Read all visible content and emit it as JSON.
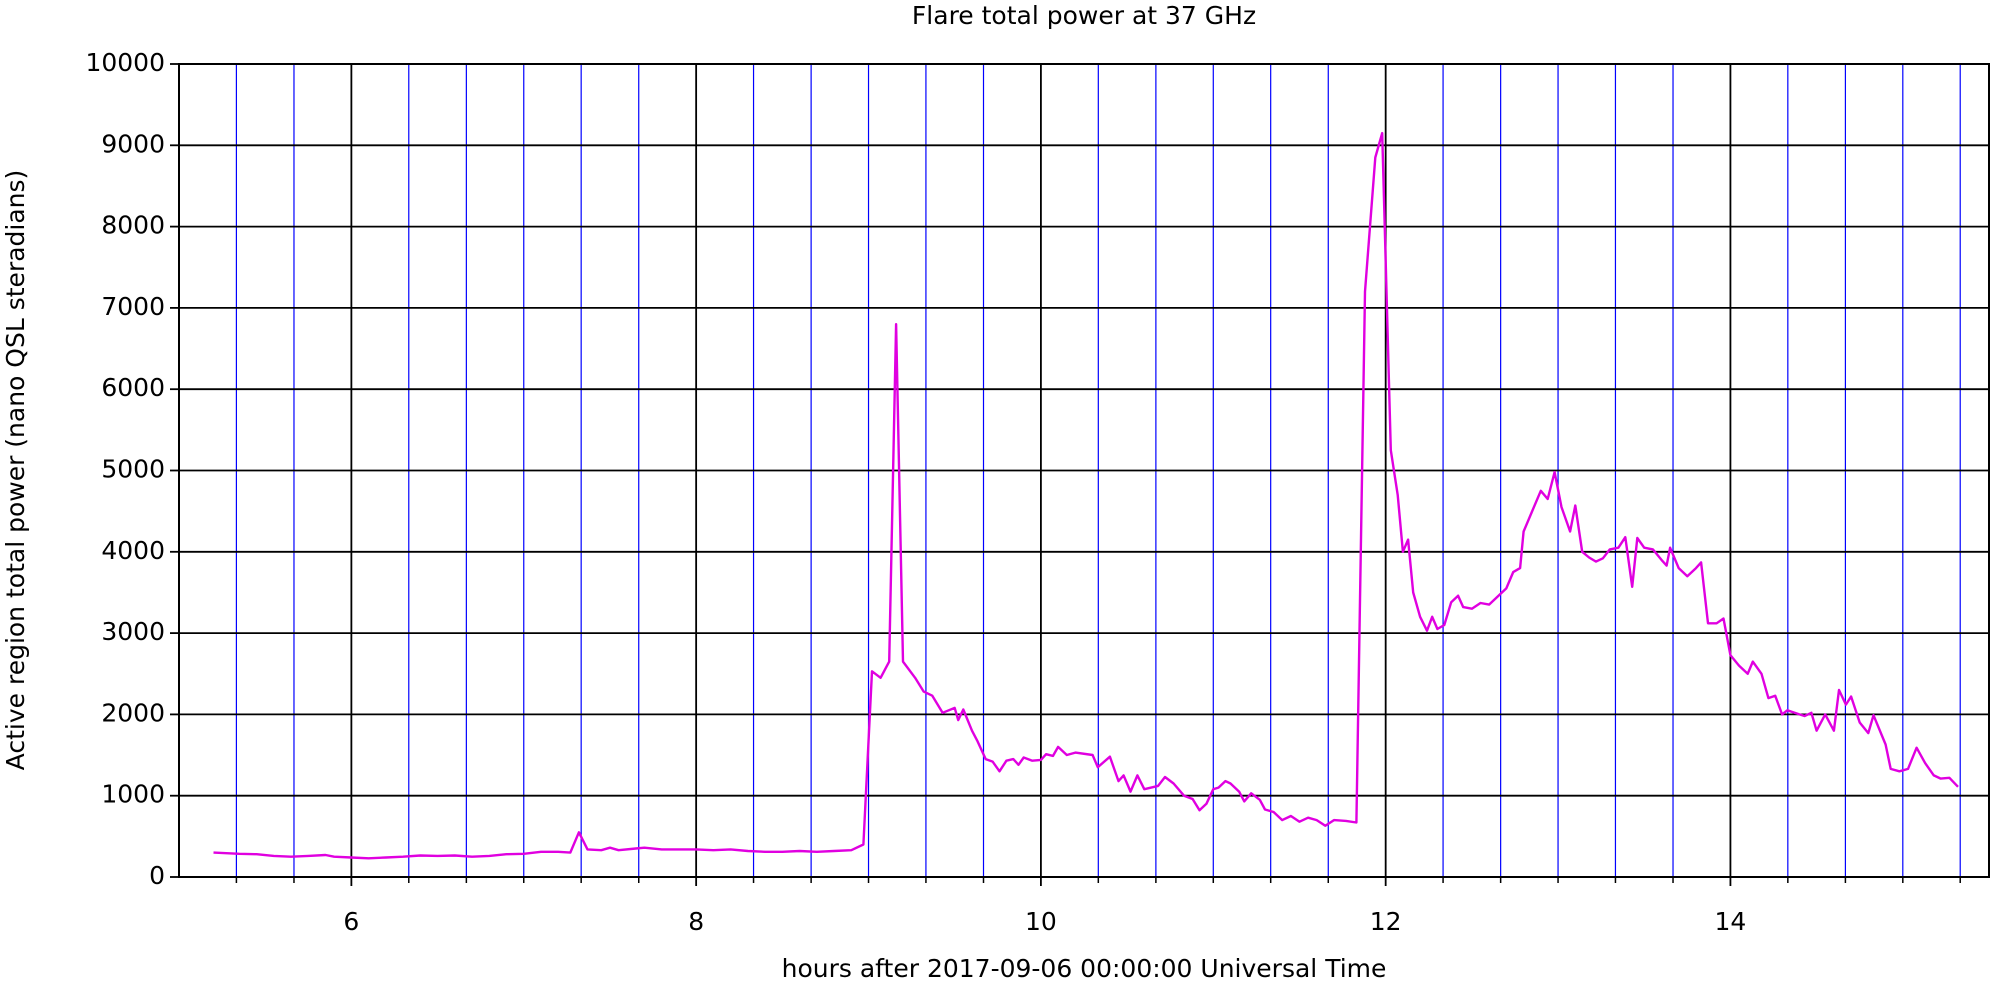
{
  "chart_data": {
    "type": "line",
    "title": "Flare total power at 37 GHz",
    "xlabel": "hours after 2017-09-06 00:00:00 Universal Time",
    "ylabel": "Active region total power (nano QSL steradians)",
    "xlim": [
      5,
      15.5
    ],
    "ylim": [
      0,
      10000
    ],
    "xticks": [
      6,
      8,
      10,
      12,
      14
    ],
    "xminor_ticks": [
      5.333,
      5.667,
      6.333,
      6.667,
      7,
      7.333,
      7.667,
      8.333,
      8.667,
      9,
      9.333,
      9.667,
      10.333,
      10.667,
      11,
      11.333,
      11.667,
      12.333,
      12.667,
      13,
      13.333,
      13.667,
      14.333,
      14.667,
      15,
      15.333
    ],
    "yticks": [
      0,
      1000,
      2000,
      3000,
      4000,
      5000,
      6000,
      7000,
      8000,
      9000,
      10000
    ],
    "grid": true,
    "major_grid_color": "#000000",
    "minor_grid_color": "#0000ff",
    "series": [
      {
        "color": "#e000e0",
        "x": [
          5.2,
          5.35,
          5.45,
          5.55,
          5.65,
          5.75,
          5.85,
          5.9,
          6.0,
          6.1,
          6.2,
          6.3,
          6.4,
          6.5,
          6.6,
          6.7,
          6.8,
          6.9,
          7.0,
          7.1,
          7.2,
          7.27,
          7.32,
          7.37,
          7.45,
          7.5,
          7.55,
          7.65,
          7.7,
          7.8,
          8.0,
          8.1,
          8.2,
          8.3,
          8.4,
          8.5,
          8.6,
          8.7,
          8.8,
          8.9,
          8.97,
          9.02,
          9.07,
          9.12,
          9.16,
          9.2,
          9.27,
          9.32,
          9.37,
          9.43,
          9.5,
          9.52,
          9.55,
          9.6,
          9.63,
          9.68,
          9.72,
          9.76,
          9.8,
          9.84,
          9.87,
          9.9,
          9.95,
          10.0,
          10.03,
          10.07,
          10.1,
          10.15,
          10.2,
          10.3,
          10.33,
          10.4,
          10.45,
          10.48,
          10.52,
          10.56,
          10.6,
          10.68,
          10.72,
          10.77,
          10.83,
          10.88,
          10.92,
          10.96,
          11.0,
          11.03,
          11.07,
          11.1,
          11.15,
          11.18,
          11.22,
          11.27,
          11.3,
          11.35,
          11.4,
          11.45,
          11.5,
          11.55,
          11.6,
          11.65,
          11.7,
          11.77,
          11.83,
          11.88,
          11.94,
          11.98,
          12.03,
          12.07,
          12.1,
          12.13,
          12.16,
          12.2,
          12.24,
          12.27,
          12.3,
          12.34,
          12.38,
          12.42,
          12.45,
          12.5,
          12.55,
          12.6,
          12.65,
          12.7,
          12.74,
          12.78,
          12.8,
          12.85,
          12.9,
          12.94,
          12.98,
          13.02,
          13.07,
          13.1,
          13.14,
          13.18,
          13.22,
          13.26,
          13.3,
          13.35,
          13.39,
          13.43,
          13.46,
          13.5,
          13.55,
          13.6,
          13.63,
          13.65,
          13.7,
          13.75,
          13.8,
          13.83,
          13.87,
          13.92,
          13.96,
          14.0,
          14.05,
          14.1,
          14.13,
          14.18,
          14.22,
          14.26,
          14.3,
          14.33,
          14.4,
          14.43,
          14.47,
          14.5,
          14.55,
          14.6,
          14.63,
          14.67,
          14.7,
          14.75,
          14.8,
          14.83,
          14.9,
          14.93,
          14.98,
          15.03,
          15.08,
          15.13,
          15.18,
          15.22,
          15.27,
          15.32
        ],
        "values": [
          300,
          285,
          280,
          260,
          250,
          260,
          270,
          250,
          240,
          230,
          240,
          250,
          265,
          260,
          265,
          250,
          260,
          280,
          285,
          310,
          310,
          300,
          550,
          340,
          330,
          360,
          330,
          350,
          360,
          340,
          340,
          330,
          340,
          320,
          310,
          310,
          320,
          310,
          320,
          330,
          400,
          2530,
          2450,
          2650,
          6800,
          2650,
          2450,
          2280,
          2230,
          2020,
          2080,
          1930,
          2060,
          1800,
          1680,
          1450,
          1420,
          1300,
          1430,
          1450,
          1380,
          1470,
          1430,
          1440,
          1510,
          1490,
          1600,
          1500,
          1530,
          1500,
          1350,
          1480,
          1180,
          1250,
          1050,
          1250,
          1080,
          1120,
          1230,
          1150,
          1000,
          960,
          820,
          900,
          1080,
          1100,
          1180,
          1150,
          1050,
          930,
          1030,
          950,
          830,
          800,
          700,
          750,
          680,
          730,
          700,
          630,
          700,
          690,
          670,
          7200,
          8850,
          9150,
          5250,
          4700,
          4000,
          4150,
          3500,
          3200,
          3030,
          3200,
          3050,
          3100,
          3380,
          3460,
          3320,
          3300,
          3370,
          3350,
          3450,
          3550,
          3750,
          3800,
          4250,
          4500,
          4750,
          4650,
          4980,
          4550,
          4250,
          4570,
          4000,
          3930,
          3880,
          3920,
          4030,
          4050,
          4180,
          3570,
          4170,
          4050,
          4030,
          3900,
          3830,
          4050,
          3800,
          3700,
          3800,
          3870,
          3120,
          3120,
          3180,
          2730,
          2600,
          2500,
          2650,
          2500,
          2200,
          2230,
          2000,
          2050,
          2000,
          1980,
          2020,
          1800,
          2000,
          1800,
          2300,
          2120,
          2220,
          1900,
          1770,
          1990,
          1630,
          1330,
          1300,
          1330,
          1590,
          1400,
          1250,
          1210,
          1220,
          1110
        ]
      }
    ]
  }
}
